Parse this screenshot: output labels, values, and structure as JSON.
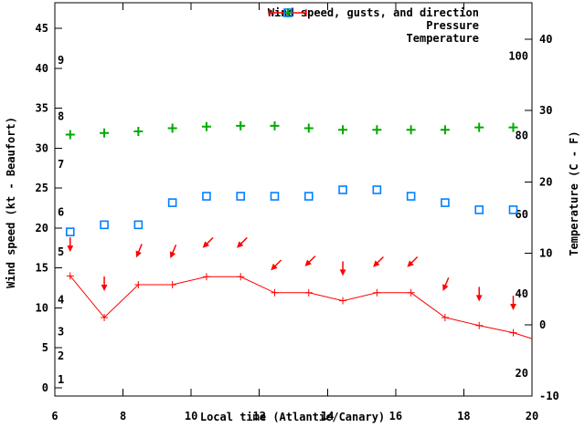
{
  "colors": {
    "wind": "#ff0000",
    "pressure": "#00aa00",
    "temperature": "#0080ff",
    "text": "#000000",
    "background": "#ffffff",
    "frame": "#000000"
  },
  "chart_data": {
    "type": "line",
    "title": "",
    "xlabel": "Local time (Atlantic/Canary)",
    "ylabel": "Wind speed (kt - Beaufort)",
    "y2label": "Temperature (C - F)",
    "grid": false,
    "legend_position": "top-right",
    "x_range": [
      6,
      20
    ],
    "x_ticks": [
      6,
      8,
      10,
      12,
      14,
      16,
      18,
      20
    ],
    "kt_axis": {
      "range": [
        -1.03,
        48.2
      ],
      "ticks": [
        0,
        5,
        10,
        15,
        20,
        25,
        30,
        35,
        40,
        45
      ]
    },
    "beaufort_labels": [
      {
        "force": "1",
        "kt": 1
      },
      {
        "force": "2",
        "kt": 4
      },
      {
        "force": "3",
        "kt": 7
      },
      {
        "force": "4",
        "kt": 11
      },
      {
        "force": "5",
        "kt": 17
      },
      {
        "force": "6",
        "kt": 22
      },
      {
        "force": "7",
        "kt": 28
      },
      {
        "force": "8",
        "kt": 34
      },
      {
        "force": "9",
        "kt": 41
      }
    ],
    "c_axis": {
      "range": [
        -10,
        45.12
      ],
      "ticks": [
        -10,
        0,
        10,
        20,
        30,
        40
      ]
    },
    "f_labels": [
      "20",
      "40",
      "60",
      "80",
      "100"
    ],
    "f_values": [
      20,
      40,
      60,
      80,
      100
    ],
    "legend": [
      {
        "label": "Wind speed, gusts, and direction",
        "series": "wind"
      },
      {
        "label": "Pressure",
        "series": "pressure"
      },
      {
        "label": "Temperature",
        "series": "temperature"
      }
    ],
    "x": [
      6.45,
      7.45,
      8.45,
      9.45,
      10.45,
      11.45,
      12.45,
      13.45,
      14.45,
      15.45,
      16.45,
      17.45,
      18.45,
      19.45
    ],
    "series": [
      {
        "name": "wind_speed",
        "units": "kt",
        "axis": "left",
        "values": [
          14,
          8.8,
          12.9,
          12.9,
          13.9,
          13.9,
          11.9,
          11.9,
          10.9,
          11.9,
          11.9,
          8.8,
          7.8,
          6.9
        ]
      },
      {
        "name": "wind_gust",
        "units": "kt",
        "axis": "left",
        "values": [
          17,
          12.1,
          16.3,
          16.2,
          17.5,
          17.5,
          14.7,
          15.2,
          14,
          15.1,
          15.1,
          12.1,
          10.8,
          9.7
        ]
      },
      {
        "name": "wind_direction_from",
        "values": [
          "N",
          "N",
          "NNE",
          "NNE",
          "NE",
          "NE",
          "NE",
          "NE",
          "N",
          "NE",
          "NE",
          "NNE",
          "N",
          "N"
        ]
      },
      {
        "name": "pressure",
        "units": "left-axis-equivalent (no pressure scale shown)",
        "axis": "left",
        "values": [
          31.7,
          31.9,
          32.1,
          32.5,
          32.7,
          32.8,
          32.8,
          32.5,
          32.3,
          32.3,
          32.3,
          32.3,
          32.6,
          32.6
        ]
      },
      {
        "name": "temperature",
        "units": "C",
        "axis": "right",
        "values": [
          13,
          14,
          14,
          17.1,
          18,
          18,
          18,
          18,
          18.9,
          18.9,
          18,
          17.1,
          16.1,
          16.1
        ]
      }
    ],
    "wind_line_end_point": {
      "x": 20,
      "value": 6.15
    }
  }
}
